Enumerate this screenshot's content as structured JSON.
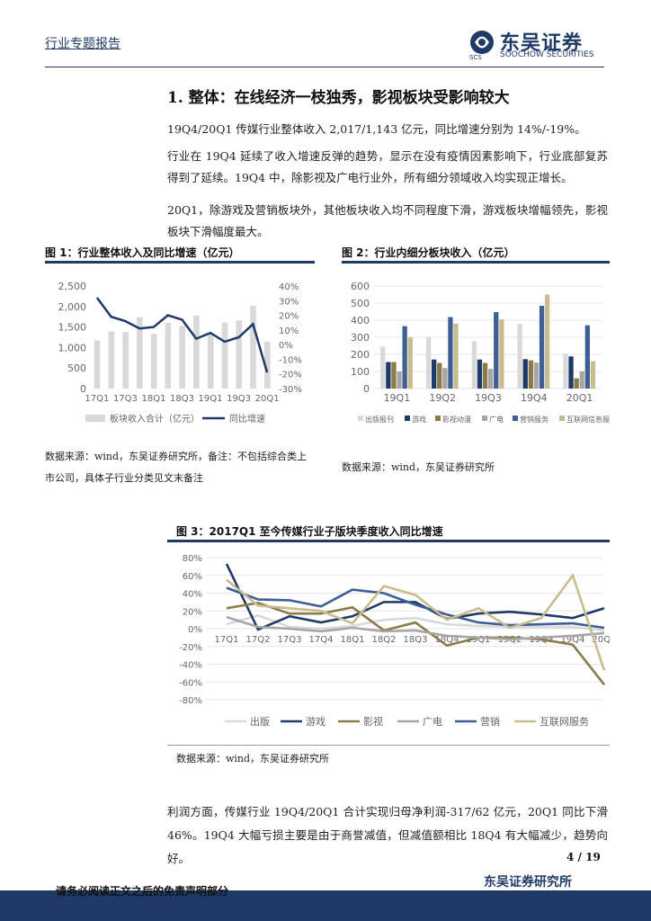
{
  "header": {
    "report_type": "行业专题报告",
    "logo_cn": "东吴证券",
    "logo_en": "SOOCHOW SECURITIES",
    "logo_code": "SCS"
  },
  "section": {
    "title": "1.  整体：在线经济一枝独秀，影视板块受影响较大",
    "paragraphs": [
      "19Q4/20Q1 传媒行业整体收入 2,017/1,143 亿元，同比增速分别为 14%/-19%。",
      "行业在 19Q4 延续了收入增速反弹的趋势，显示在没有疫情因素影响下，行业底部复苏得到了延续。19Q4 中，除影视及广电行业外，所有细分领域收入均实现正增长。",
      "20Q1，除游戏及营销板块外，其他板块收入均不同程度下滑，游戏板块增幅领先，影视板块下滑幅度最大。"
    ]
  },
  "fig1": {
    "title": "图 1：行业整体收入及同比增速（亿元）",
    "source": "数据来源：wind，东吴证券研究所，备注：不包括综合类上市公司，具体子行业分类见文末备注"
  },
  "fig2": {
    "title": "图 2：行业内细分板块收入（亿元）",
    "source": "数据来源：wind，东吴证券研究所"
  },
  "fig3": {
    "title": "图 3：2017Q1 至今传媒行业子版块季度收入同比增速",
    "source": "数据来源：wind，东吴证券研究所"
  },
  "bottom_text": "利润方面，传媒行业 19Q4/20Q1 合计实现归母净利润-317/62 亿元，20Q1 同比下滑 46%。19Q4 大幅亏损主要是由于商誉减值，但减值额相比 18Q4 有大幅减少，趋势向好。",
  "page_number": "4 / 19",
  "org_name": "东吴证券研究所",
  "footer_notice": "请务必阅读正文之后的免责声明部分",
  "chart_data": [
    {
      "type": "bar+line",
      "x": [
        "17Q1",
        "17Q2",
        "17Q3",
        "17Q4",
        "18Q1",
        "18Q2",
        "18Q3",
        "18Q4",
        "19Q1",
        "19Q2",
        "19Q3",
        "19Q4",
        "20Q1"
      ],
      "x_tick_labels": [
        "17Q1",
        "17Q3",
        "18Q1",
        "18Q3",
        "19Q1",
        "19Q3",
        "20Q1"
      ],
      "series": [
        {
          "name": "板块收入合计（亿元）",
          "axis": "left",
          "type": "bar",
          "color": "#d9d9d9",
          "values": [
            1170,
            1390,
            1380,
            1740,
            1330,
            1600,
            1530,
            1780,
            1350,
            1610,
            1660,
            2017,
            1143
          ]
        },
        {
          "name": "同比增速",
          "axis": "right",
          "type": "line",
          "color": "#1f3a66",
          "values": [
            32,
            19,
            16,
            11,
            12,
            20,
            17,
            4,
            8,
            2,
            5,
            14,
            -19
          ]
        }
      ],
      "ylim_left": [
        0,
        2500
      ],
      "yticks_left": [
        "0",
        "500",
        "1,000",
        "1,500",
        "2,000",
        "2,500"
      ],
      "ylim_right": [
        -30,
        40
      ],
      "yticks_right": [
        "-30%",
        "-20%",
        "-10%",
        "0%",
        "10%",
        "20%",
        "30%",
        "40%"
      ],
      "legend": "bottom"
    },
    {
      "type": "bar",
      "categories": [
        "19Q1",
        "19Q2",
        "19Q3",
        "19Q4",
        "20Q1"
      ],
      "series": [
        {
          "name": "出版报刊",
          "color": "#d9d9d9",
          "values": [
            245,
            300,
            278,
            378,
            205
          ]
        },
        {
          "name": "游戏",
          "color": "#1f3a66",
          "values": [
            155,
            170,
            170,
            172,
            188
          ]
        },
        {
          "name": "影视动漫",
          "color": "#8c7b4a",
          "values": [
            155,
            150,
            150,
            165,
            60
          ]
        },
        {
          "name": "广电",
          "color": "#a6a6a6",
          "values": [
            100,
            120,
            115,
            152,
            100
          ]
        },
        {
          "name": "营销服务",
          "color": "#3d5f94",
          "values": [
            365,
            418,
            447,
            484,
            370
          ]
        },
        {
          "name": "互联网信息服务",
          "color": "#c9bc8e",
          "values": [
            300,
            380,
            405,
            550,
            160
          ]
        }
      ],
      "ylim": [
        0,
        600
      ],
      "yticks": [
        "0",
        "100",
        "200",
        "300",
        "400",
        "500",
        "600"
      ],
      "legend": "bottom"
    },
    {
      "type": "line",
      "x": [
        "17Q1",
        "17Q2",
        "17Q3",
        "17Q4",
        "18Q1",
        "18Q2",
        "18Q3",
        "18Q4",
        "19Q1",
        "19Q2",
        "19Q3",
        "19Q4",
        "20Q1"
      ],
      "series": [
        {
          "name": "出版",
          "color": "#d9d9d9",
          "values": [
            5,
            15,
            2,
            0,
            3,
            10,
            12,
            5,
            3,
            2,
            2,
            2,
            -2
          ]
        },
        {
          "name": "游戏",
          "color": "#1f3a66",
          "values": [
            73,
            -1,
            14,
            7,
            14,
            30,
            30,
            11,
            17,
            19,
            16,
            12,
            23
          ]
        },
        {
          "name": "影视",
          "color": "#8c7b4a",
          "values": [
            23,
            29,
            17,
            17,
            24,
            -2,
            7,
            -19,
            -10,
            -10,
            -12,
            -18,
            -63
          ]
        },
        {
          "name": "广电",
          "color": "#a6a6a6",
          "values": [
            13,
            2,
            0,
            -3,
            1,
            -3,
            -2,
            -8,
            -10,
            -12,
            -10,
            -8,
            -5
          ]
        },
        {
          "name": "营销",
          "color": "#3d5f94",
          "values": [
            46,
            33,
            32,
            25,
            44,
            40,
            27,
            16,
            7,
            4,
            5,
            6,
            1
          ]
        },
        {
          "name": "互联网服务",
          "color": "#c9bc8e",
          "values": [
            55,
            26,
            23,
            20,
            6,
            48,
            38,
            10,
            23,
            1,
            12,
            60,
            -47
          ]
        }
      ],
      "ylim": [
        -80,
        80
      ],
      "yticks": [
        "-80%",
        "-60%",
        "-40%",
        "-20%",
        "0%",
        "20%",
        "40%",
        "60%",
        "80%"
      ],
      "legend": "bottom"
    }
  ]
}
